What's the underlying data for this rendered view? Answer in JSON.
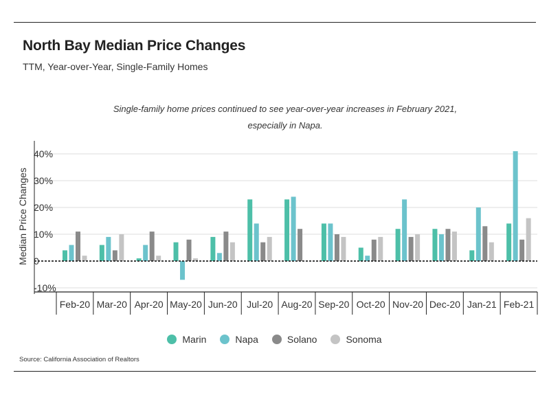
{
  "header": {
    "title": "North Bay Median Price Changes",
    "subtitle": "TTM, Year-over-Year, Single-Family Homes"
  },
  "annotation": {
    "line1": "Single-family home prices continued to see year-over-year increases in February 2021,",
    "line2": "especially in Napa."
  },
  "source": "Source:  California Association of Realtors",
  "colors": {
    "Marin": "#4dbfa8",
    "Napa": "#6cc3cc",
    "Solano": "#8a8a8a",
    "Sonoma": "#c4c4c4",
    "axis": "#222222",
    "grid": "#dddddd"
  },
  "chart_data": {
    "type": "bar",
    "title": "North Bay Median Price Changes",
    "subtitle": "TTM, Year-over-Year, Single-Family Homes",
    "ylabel": "Median Price Changes",
    "xlabel": "",
    "ylim": [
      -13,
      42
    ],
    "yticks": [
      -10,
      0,
      10,
      20,
      30,
      40
    ],
    "ytick_labels": [
      "-10%",
      "0",
      "10%",
      "20%",
      "30%",
      "40%"
    ],
    "grid": true,
    "zero_line": "dashed",
    "legend_position": "bottom",
    "categories": [
      "Feb-20",
      "Mar-20",
      "Apr-20",
      "May-20",
      "Jun-20",
      "Jul-20",
      "Aug-20",
      "Sep-20",
      "Oct-20",
      "Nov-20",
      "Dec-20",
      "Jan-21",
      "Feb-21"
    ],
    "series": [
      {
        "name": "Marin",
        "values": [
          4,
          6,
          1,
          7,
          9,
          23,
          23,
          14,
          5,
          12,
          12,
          4,
          14
        ]
      },
      {
        "name": "Napa",
        "values": [
          6,
          9,
          6,
          -7,
          3,
          14,
          24,
          14,
          2,
          23,
          10,
          20,
          41
        ]
      },
      {
        "name": "Solano",
        "values": [
          11,
          4,
          11,
          8,
          11,
          7,
          12,
          10,
          8,
          9,
          12,
          13,
          8
        ]
      },
      {
        "name": "Sonoma",
        "values": [
          2,
          10,
          2,
          1,
          7,
          9,
          0,
          9,
          9,
          10,
          11,
          7,
          16
        ]
      }
    ]
  }
}
